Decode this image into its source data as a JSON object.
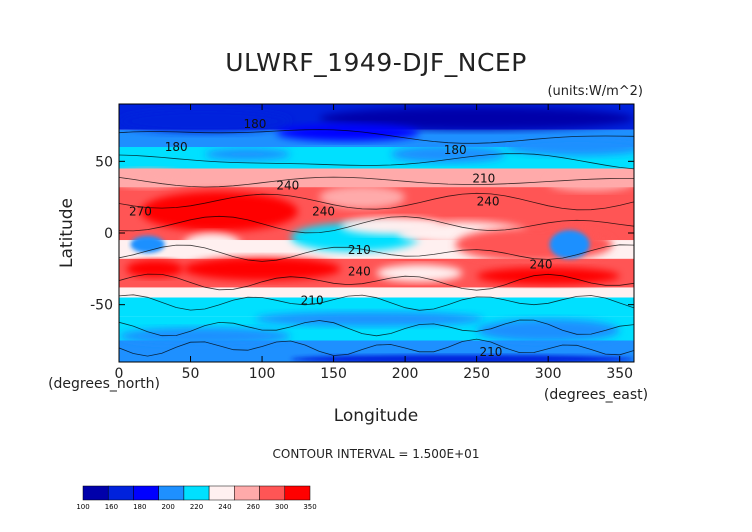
{
  "chart_data": {
    "type": "heatmap",
    "title": "ULWRF_1949-DJF_NCEP",
    "units_note": "(units:W/m^2)",
    "xlabel": "Longitude",
    "ylabel": "Latitude",
    "xlim": [
      0,
      360
    ],
    "ylim": [
      -90,
      90
    ],
    "x_ticks": [
      0,
      50,
      100,
      150,
      200,
      250,
      300,
      350
    ],
    "y_ticks": [
      50,
      0,
      -50
    ],
    "x_unit_note": "(degrees_east)",
    "y_unit_note": "(degrees_north)",
    "contour_interval_text": "CONTOUR INTERVAL = 1.500E+01",
    "contour_labels": [
      {
        "text": "180",
        "lon": 95,
        "lat": 76
      },
      {
        "text": "180",
        "lon": 40,
        "lat": 60
      },
      {
        "text": "180",
        "lon": 235,
        "lat": 58
      },
      {
        "text": "240",
        "lon": 118,
        "lat": 33
      },
      {
        "text": "210",
        "lon": 255,
        "lat": 38
      },
      {
        "text": "270",
        "lon": 15,
        "lat": 15
      },
      {
        "text": "240",
        "lon": 143,
        "lat": 15
      },
      {
        "text": "240",
        "lon": 258,
        "lat": 22
      },
      {
        "text": "210",
        "lon": 168,
        "lat": -12
      },
      {
        "text": "240",
        "lon": 168,
        "lat": -27
      },
      {
        "text": "240",
        "lon": 295,
        "lat": -22
      },
      {
        "text": "210",
        "lon": 135,
        "lat": -47
      },
      {
        "text": "210",
        "lon": 260,
        "lat": -83
      }
    ],
    "colorbar": {
      "levels": [
        "100",
        "160",
        "180",
        "200",
        "220",
        "240",
        "260",
        "300",
        "350"
      ],
      "colors": [
        "#0000aa",
        "#0022dd",
        "#0000ff",
        "#1e90ff",
        "#00e0ff",
        "#fff0f0",
        "#ffaaaa",
        "#ff5555",
        "#ff0000"
      ]
    }
  }
}
